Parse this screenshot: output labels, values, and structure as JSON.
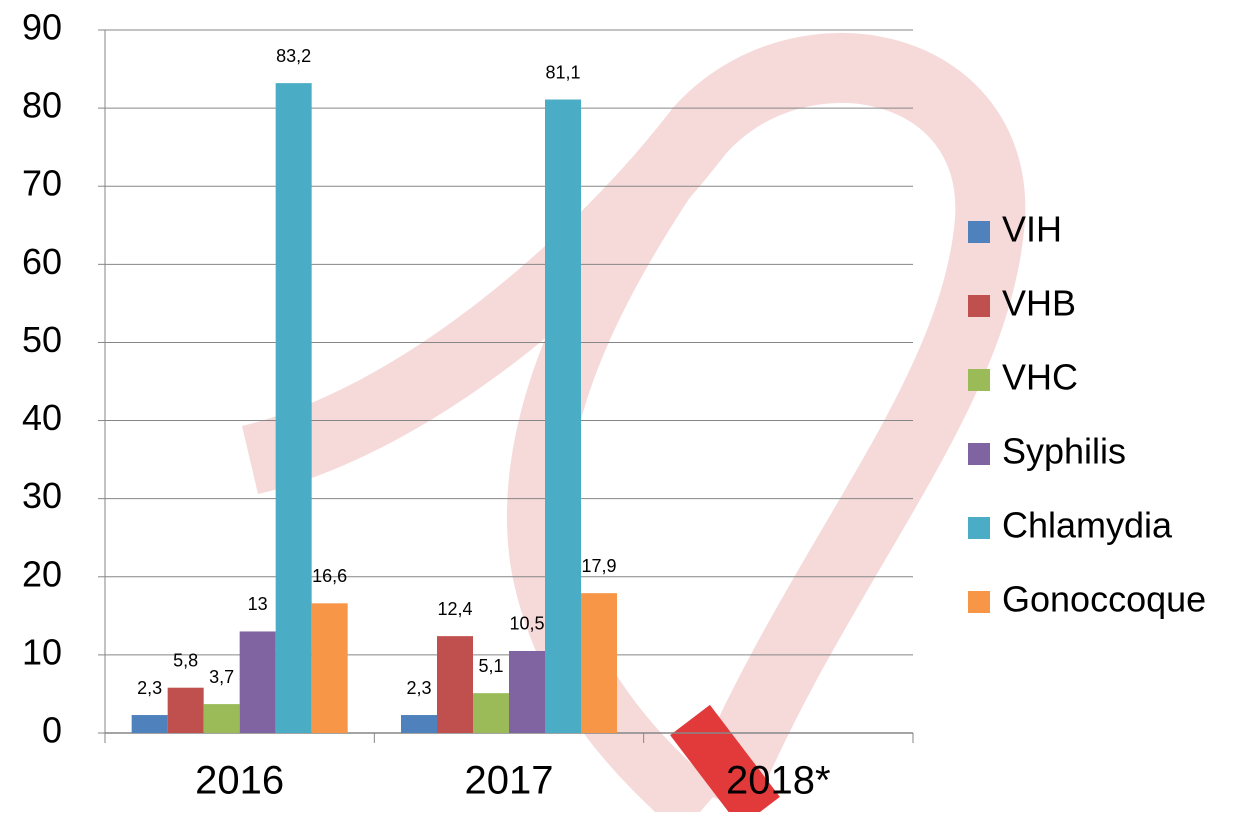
{
  "chart_data": {
    "type": "bar",
    "categories": [
      "2016",
      "2017",
      "2018*"
    ],
    "series": [
      {
        "name": "VIH",
        "color": "#4f81bd",
        "values": [
          2.3,
          2.3,
          null
        ],
        "value_labels": [
          "2,3",
          "2,3",
          null
        ]
      },
      {
        "name": "VHB",
        "color": "#c0504d",
        "values": [
          5.8,
          12.4,
          null
        ],
        "value_labels": [
          "5,8",
          "12,4",
          null
        ]
      },
      {
        "name": "VHC",
        "color": "#9bbb59",
        "values": [
          3.7,
          5.1,
          null
        ],
        "value_labels": [
          "3,7",
          "5,1",
          null
        ]
      },
      {
        "name": "Syphilis",
        "color": "#8064a2",
        "values": [
          13,
          10.5,
          null
        ],
        "value_labels": [
          "13",
          "10,5",
          null
        ]
      },
      {
        "name": "Chlamydia",
        "color": "#4bacc6",
        "values": [
          83.2,
          81.1,
          null
        ],
        "value_labels": [
          "83,2",
          "81,1",
          null
        ]
      },
      {
        "name": "Gonoccoque",
        "color": "#f79646",
        "values": [
          16.6,
          17.9,
          null
        ],
        "value_labels": [
          "16,6",
          "17,9",
          null
        ]
      }
    ],
    "ylim": [
      0,
      90
    ],
    "yticks": [
      0,
      10,
      20,
      30,
      40,
      50,
      60,
      70,
      80,
      90
    ],
    "grid": true,
    "legend": "right"
  }
}
